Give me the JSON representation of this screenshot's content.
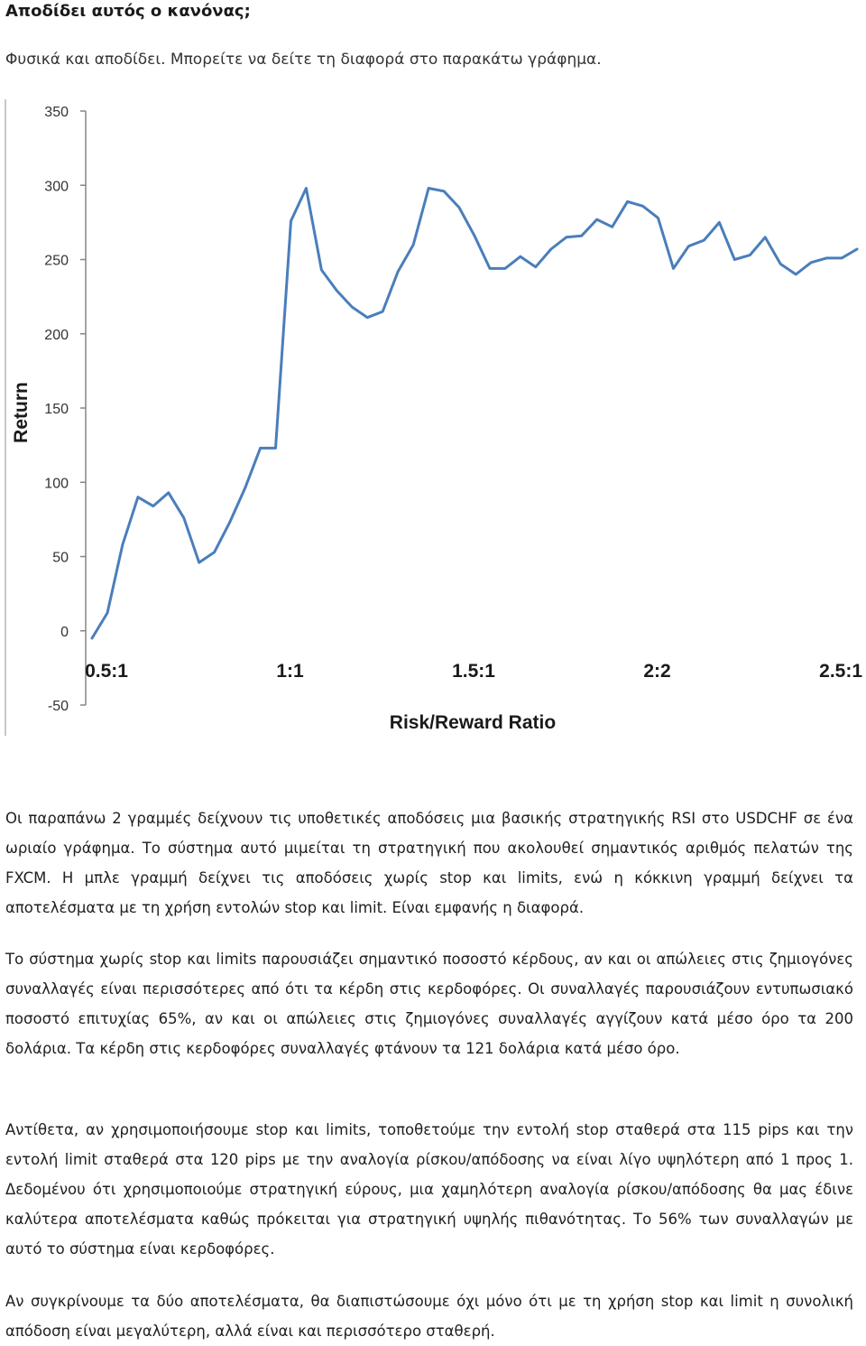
{
  "heading": "Αποδίδει αυτός ο κανόνας;",
  "intro": "Φυσικά και αποδίδει. Μπορείτε να δείτε τη διαφορά στο παρακάτω γράφημα.",
  "chart_data": {
    "type": "line",
    "title": "",
    "xlabel": "Risk/Reward Ratio",
    "ylabel": "Return",
    "ylim": [
      -50,
      350
    ],
    "yticks": [
      350,
      300,
      250,
      200,
      150,
      100,
      50,
      0,
      -50
    ],
    "xtick_labels": [
      "0.5:1",
      "1:1",
      "1.5:1",
      "2:2",
      "2.5:1"
    ],
    "xtick_index": [
      0,
      12,
      24,
      36,
      48
    ],
    "grid": false,
    "legend": "none",
    "line_color": "#4a7ebb",
    "series": [
      {
        "values": [
          -5,
          12,
          58,
          90,
          84,
          93,
          76,
          46,
          53,
          73,
          96,
          123,
          123,
          276,
          298,
          243,
          229,
          218,
          211,
          215,
          242,
          260,
          298,
          296,
          285,
          266,
          244,
          244,
          252,
          245,
          257,
          265,
          266,
          277,
          272,
          289,
          286,
          278,
          244,
          259,
          263,
          275,
          250,
          253,
          265,
          247,
          240,
          248,
          251,
          251,
          257
        ]
      }
    ]
  },
  "paragraphs": [
    "Οι παραπάνω 2 γραμμές δείχνουν τις υποθετικές αποδόσεις μια βασικής στρατηγικής RSI στο USDCHF σε ένα ωριαίο γράφημα. Το σύστημα αυτό μιμείται τη στρατηγική που ακολουθεί σημαντικός αριθμός πελατών της FXCM. Η μπλε γραμμή δείχνει τις αποδόσεις χωρίς stop και limits, ενώ η κόκκινη γραμμή δείχνει τα αποτελέσματα με τη χρήση εντολών stop και limit. Είναι εμφανής η διαφορά.",
    "Το σύστημα χωρίς stop και limits παρουσιάζει σημαντικό ποσοστό κέρδους, αν και οι απώλειες στις ζημιογόνες συναλλαγές είναι περισσότερες από ότι τα κέρδη στις κερδοφόρες. Οι συναλλαγές παρουσιάζουν εντυπωσιακό ποσοστό επιτυχίας 65%, αν και οι απώλειες στις ζημιογόνες συναλλαγές αγγίζουν κατά μέσο όρο τα 200 δολάρια. Τα κέρδη στις κερδοφόρες συναλλαγές φτάνουν τα 121 δολάρια κατά μέσο όρο.",
    "Αντίθετα, αν χρησιμοποιήσουμε stop και limits, τοποθετούμε την εντολή stop σταθερά στα 115 pips και την εντολή limit σταθερά στα 120 pips με την αναλογία ρίσκου/απόδοσης να είναι λίγο υψηλότερη από 1 προς 1. Δεδομένου ότι χρησιμοποιούμε στρατηγική εύρους, μια χαμηλότερη αναλογία ρίσκου/απόδοσης θα μας έδινε καλύτερα αποτελέσματα καθώς πρόκειται για στρατηγική υψηλής πιθανότητας. Το 56% των συναλλαγών με αυτό το σύστημα είναι κερδοφόρες.",
    "Αν συγκρίνουμε τα δύο αποτελέσματα, θα διαπιστώσουμε όχι μόνο ότι με τη χρήση stop και limit η συνολική απόδοση είναι μεγαλύτερη, αλλά είναι και περισσότερο σταθερή."
  ]
}
